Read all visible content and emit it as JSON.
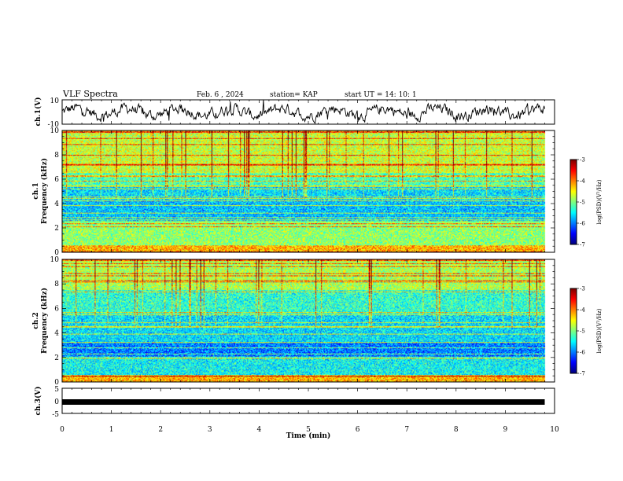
{
  "header": {
    "title": "VLF Spectra",
    "date": "Feb. 6 , 2024",
    "station": "station= KAP",
    "start": "start  UT =   14: 10: 1"
  },
  "chart_data": [
    {
      "type": "line",
      "name": "waveform-ch1",
      "ylabel": "ch.1(V)",
      "ylim": [
        -10,
        10
      ],
      "yticks": [
        "10",
        "-10"
      ],
      "xlim": [
        0,
        10
      ]
    },
    {
      "type": "heatmap",
      "name": "spectrogram-ch1",
      "ylabel_line1": "ch.1",
      "ylabel_line2": "Frequency (kHz)",
      "ylim": [
        0,
        10
      ],
      "yticks": [
        "0",
        "2",
        "4",
        "6",
        "8",
        "10"
      ],
      "xlim": [
        0,
        10
      ],
      "data_end_min": 9.8,
      "colorbar": {
        "label": "log(PSD)(V²/Hz)",
        "range": [
          -7,
          -3
        ],
        "ticks": [
          "-3",
          "-4",
          "-5",
          "-6",
          "-7"
        ]
      }
    },
    {
      "type": "heatmap",
      "name": "spectrogram-ch2",
      "ylabel_line1": "ch.2",
      "ylabel_line2": "Frequency (kHz)",
      "ylim": [
        0,
        10
      ],
      "yticks": [
        "0",
        "2",
        "4",
        "6",
        "8",
        "10"
      ],
      "xlim": [
        0,
        10
      ],
      "data_end_min": 9.8,
      "colorbar": {
        "label": "log(PSD)(V²/Hz)",
        "range": [
          -7,
          -3
        ],
        "ticks": [
          "-3",
          "-4",
          "-5",
          "-6",
          "-7"
        ]
      }
    },
    {
      "type": "line",
      "name": "waveform-ch3",
      "ylabel": "ch.3(V)",
      "ylim": [
        -5,
        5
      ],
      "yticks": [
        "5",
        "0",
        "-5"
      ],
      "xlim": [
        0,
        10
      ],
      "xlabel": "Time (min)",
      "xticks": [
        "0",
        "1",
        "2",
        "3",
        "4",
        "5",
        "6",
        "7",
        "8",
        "9",
        "10"
      ]
    }
  ]
}
